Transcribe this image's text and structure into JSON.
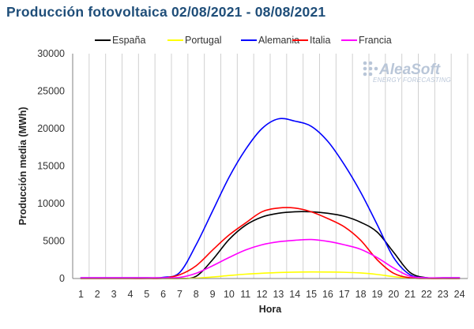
{
  "chart_data": {
    "type": "line",
    "title": "Producción fotovoltaica 02/08/2021 - 08/08/2021",
    "xlabel": "Hora",
    "ylabel": "Producción media (MWh)",
    "x": [
      1,
      2,
      3,
      4,
      5,
      6,
      7,
      8,
      9,
      10,
      11,
      12,
      13,
      14,
      15,
      16,
      17,
      18,
      19,
      20,
      21,
      22,
      23,
      24
    ],
    "ylim": [
      0,
      30000
    ],
    "yticks": [
      0,
      5000,
      10000,
      15000,
      20000,
      25000,
      30000
    ],
    "ytick_labels": [
      "0",
      "5000",
      "10000",
      "15000",
      "20000",
      "25000",
      "30000"
    ],
    "grid": "vertical",
    "legend_position": "top",
    "series": [
      {
        "name": "España",
        "color": "#000000",
        "values": [
          0,
          0,
          0,
          0,
          0,
          0,
          0,
          300,
          2500,
          5200,
          7100,
          8200,
          8700,
          8900,
          8900,
          8700,
          8300,
          7500,
          6200,
          3500,
          800,
          100,
          0,
          0
        ]
      },
      {
        "name": "Portugal",
        "color": "#ffff00",
        "values": [
          0,
          0,
          0,
          0,
          0,
          0,
          0,
          50,
          200,
          400,
          580,
          700,
          800,
          850,
          870,
          860,
          830,
          740,
          540,
          250,
          60,
          0,
          0,
          0
        ]
      },
      {
        "name": "Alemania",
        "color": "#0000ff",
        "values": [
          100,
          100,
          100,
          100,
          100,
          150,
          800,
          4500,
          9000,
          13500,
          17200,
          20000,
          21300,
          21000,
          20300,
          18300,
          15200,
          11500,
          7200,
          2800,
          500,
          100,
          100,
          100
        ]
      },
      {
        "name": "Italia",
        "color": "#ff0000",
        "values": [
          0,
          0,
          0,
          0,
          0,
          50,
          500,
          1700,
          3800,
          5800,
          7400,
          8900,
          9400,
          9400,
          8900,
          8000,
          6900,
          5100,
          2500,
          700,
          100,
          0,
          0,
          0
        ]
      },
      {
        "name": "Francia",
        "color": "#ff00ff",
        "values": [
          100,
          100,
          100,
          100,
          100,
          100,
          150,
          700,
          1700,
          2800,
          3800,
          4500,
          4900,
          5100,
          5200,
          4950,
          4500,
          3900,
          2800,
          1400,
          300,
          100,
          100,
          100
        ]
      }
    ]
  },
  "watermark": {
    "brand": "AleaSoft",
    "tagline": "ENERGY FORECASTING"
  }
}
